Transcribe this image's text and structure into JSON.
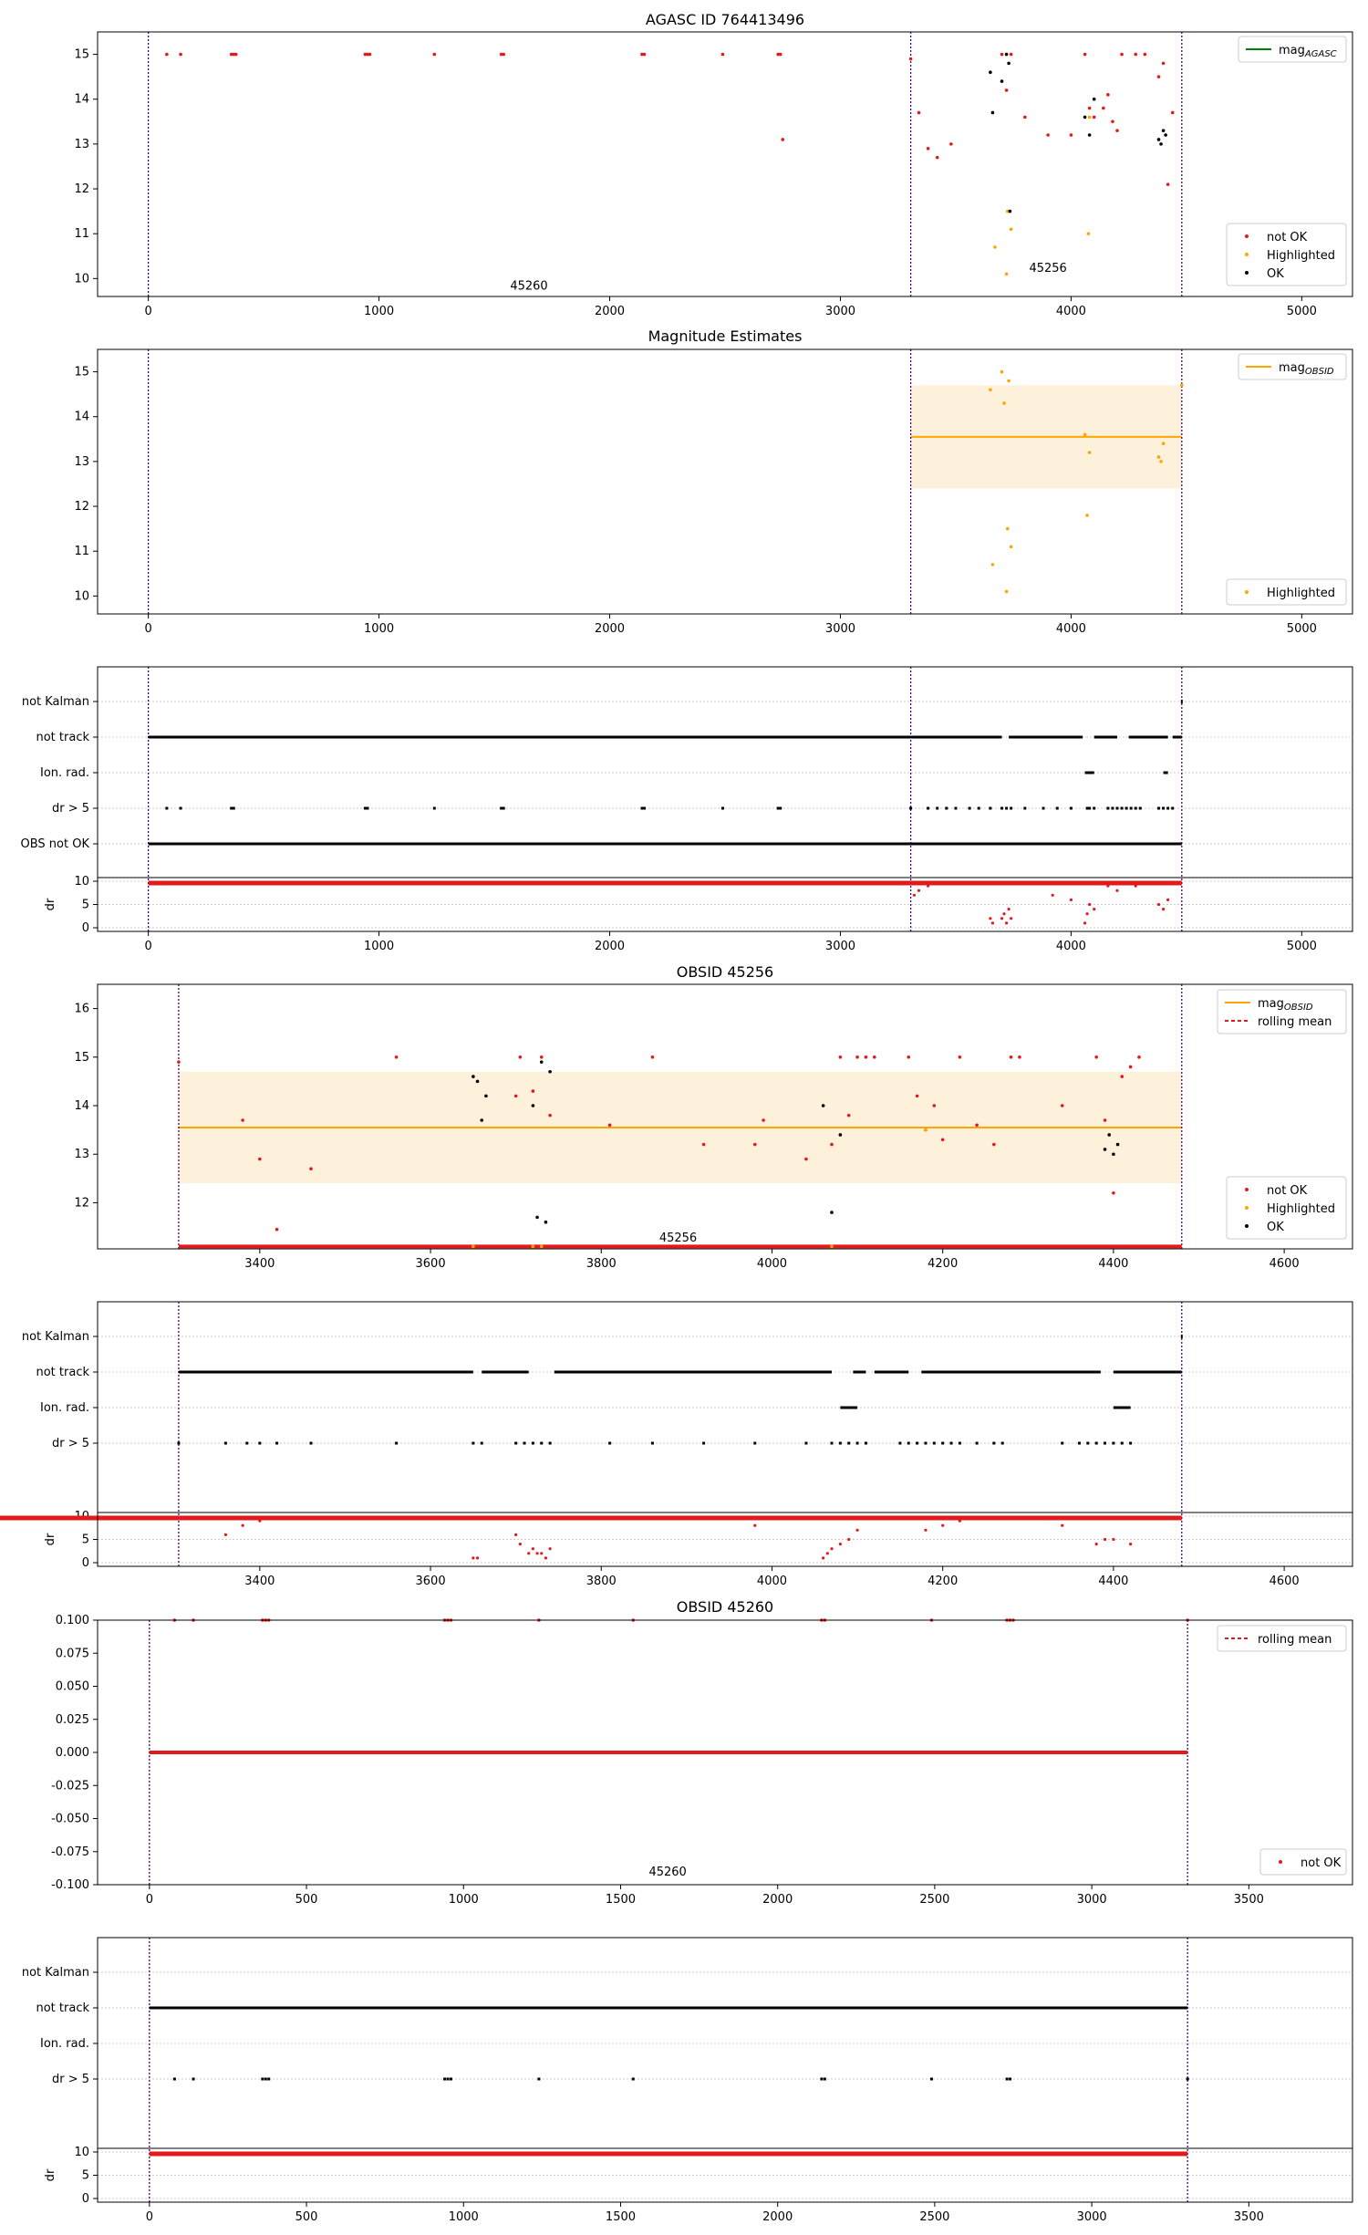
{
  "figure": {
    "panel_titles": {
      "agasc": "AGASC ID 764413496",
      "estimates": "Magnitude Estimates",
      "obs45256": "OBSID 45256",
      "obs45260": "OBSID 45260"
    }
  },
  "colors": {
    "not_ok": "#e31a1c",
    "highlighted": "#ffa500",
    "ok": "#000000",
    "agasc_line": "#008000",
    "obsid_line": "#ffa500",
    "band": "#fdf1dc",
    "rolling_mean": "#e31a1c",
    "boundary": "#4b0082"
  },
  "legends": {
    "mag_agasc": "mag",
    "mag_agasc_sub": "AGASC",
    "mag_obsid": "mag",
    "mag_obsid_sub": "OBSID",
    "rolling_mean": "rolling mean",
    "not_ok": "not OK",
    "highlighted": "Highlighted",
    "ok": "OK"
  },
  "flag_labels": [
    "not Kalman",
    "not track",
    "Ion. rad.",
    "dr > 5",
    "OBS not OK"
  ],
  "dr_label": "dr",
  "obsid_annotations": {
    "first": "45260",
    "second": "45256"
  },
  "chart_data": [
    {
      "id": "agasc",
      "type": "scatter",
      "title": "AGASC ID 764413496",
      "xlim": [
        -220,
        5220
      ],
      "ylim": [
        9.6,
        15.5
      ],
      "xticks": [
        0,
        1000,
        2000,
        3000,
        4000,
        5000
      ],
      "yticks": [
        10,
        11,
        12,
        13,
        14,
        15
      ],
      "boundaries": [
        0,
        3305,
        4480
      ],
      "segment_labels": [
        {
          "text": "45260",
          "x": 1650,
          "y": 9.75
        },
        {
          "text": "45256",
          "x": 3900,
          "y": 10.15
        }
      ],
      "series": [
        {
          "name": "not OK",
          "x": [
            80,
            140,
            360,
            370,
            380,
            940,
            950,
            960,
            1240,
            1530,
            1540,
            2140,
            2150,
            2490,
            2730,
            2740,
            2750,
            3305,
            3340,
            3380,
            3420,
            3480,
            3700,
            3720,
            3740,
            3800,
            3900,
            4000,
            4060,
            4080,
            4100,
            4140,
            4160,
            4180,
            4200,
            4220,
            4280,
            4320,
            4380,
            4400,
            4420,
            4440
          ],
          "y": [
            15,
            15,
            15,
            15,
            15,
            15,
            15,
            15,
            15,
            15,
            15,
            15,
            15,
            15,
            15,
            15,
            13.1,
            14.9,
            13.7,
            12.9,
            12.7,
            13.0,
            15,
            14.2,
            15,
            13.6,
            13.2,
            13.2,
            15,
            13.8,
            13.6,
            13.8,
            14.1,
            13.5,
            13.3,
            15,
            15,
            15,
            14.5,
            14.8,
            12.1,
            13.7
          ]
        },
        {
          "name": "Highlighted",
          "x": [
            3670,
            3720,
            3725,
            3740,
            4075,
            4080
          ],
          "y": [
            10.7,
            10.1,
            11.5,
            11.1,
            11.0,
            13.6
          ]
        },
        {
          "name": "OK",
          "x": [
            3650,
            3660,
            3700,
            3720,
            3730,
            3735,
            4060,
            4080,
            4100,
            4380,
            4390,
            4400,
            4410
          ],
          "y": [
            14.6,
            13.7,
            14.4,
            15,
            14.8,
            11.5,
            13.6,
            13.2,
            14.0,
            13.1,
            13.0,
            13.3,
            13.2
          ]
        }
      ],
      "legend": [
        "mag_AGASC",
        "not OK",
        "Highlighted",
        "OK"
      ]
    },
    {
      "id": "estimates",
      "type": "scatter",
      "title": "Magnitude Estimates",
      "xlim": [
        -220,
        5220
      ],
      "ylim": [
        9.6,
        15.5
      ],
      "xticks": [
        0,
        1000,
        2000,
        3000,
        4000,
        5000
      ],
      "yticks": [
        10,
        11,
        12,
        13,
        14,
        15
      ],
      "boundaries": [
        0,
        3305,
        4480
      ],
      "mag_obsid": 13.55,
      "band": [
        12.4,
        14.7
      ],
      "band_x": [
        3305,
        4480
      ],
      "series": [
        {
          "name": "Highlighted",
          "x": [
            3650,
            3660,
            3700,
            3710,
            3720,
            3725,
            3730,
            3740,
            4060,
            4070,
            4080,
            4380,
            4390,
            4400,
            4480
          ],
          "y": [
            14.6,
            10.7,
            15,
            14.3,
            10.1,
            11.5,
            14.8,
            11.1,
            13.6,
            11.8,
            13.2,
            13.1,
            13.0,
            13.4,
            14.7
          ]
        }
      ],
      "legend": [
        "mag_OBSID",
        "Highlighted"
      ]
    },
    {
      "id": "flags_all",
      "type": "scatter",
      "xlim": [
        -220,
        5220
      ],
      "xticks": [
        0,
        1000,
        2000,
        3000,
        4000,
        5000
      ],
      "boundaries": [
        0,
        3305,
        4480
      ],
      "flags": {
        "not_track": [
          [
            0,
            3305
          ],
          [
            3305,
            3700
          ],
          [
            3730,
            4050
          ],
          [
            4100,
            4200
          ],
          [
            4250,
            4420
          ],
          [
            4440,
            4480
          ]
        ],
        "ion_rad": [
          [
            4060,
            4100
          ],
          [
            4400,
            4420
          ]
        ],
        "dr5_points": [
          80,
          140,
          360,
          370,
          940,
          950,
          1240,
          1530,
          1540,
          2140,
          2150,
          2490,
          2730,
          2740,
          3305,
          3380,
          3420,
          3460,
          3500,
          3560,
          3600,
          3650,
          3700,
          3720,
          3740,
          3800,
          3880,
          3940,
          4000,
          4070,
          4080,
          4100,
          4160,
          4180,
          4200,
          4220,
          4240,
          4260,
          4280,
          4300,
          4380,
          4400,
          4420,
          4440
        ],
        "obs_not_ok": [
          [
            0,
            4480
          ]
        ],
        "not_kalman_points": [
          4480
        ]
      },
      "dr_ylim": [
        0,
        10
      ],
      "dr_yticks": [
        0,
        5,
        10
      ],
      "dr_points": [
        [
          3320,
          7
        ],
        [
          3340,
          8
        ],
        [
          3380,
          9
        ],
        [
          3650,
          2
        ],
        [
          3660,
          1
        ],
        [
          3700,
          2
        ],
        [
          3710,
          3
        ],
        [
          3720,
          1
        ],
        [
          3730,
          4
        ],
        [
          3740,
          2
        ],
        [
          3920,
          7
        ],
        [
          4000,
          6
        ],
        [
          4060,
          1
        ],
        [
          4070,
          3
        ],
        [
          4080,
          5
        ],
        [
          4100,
          4
        ],
        [
          4160,
          9
        ],
        [
          4200,
          8
        ],
        [
          4280,
          9
        ],
        [
          4380,
          5
        ],
        [
          4400,
          4
        ],
        [
          4420,
          6
        ]
      ]
    },
    {
      "id": "obs45256",
      "type": "scatter",
      "title": "OBSID 45256",
      "xlim": [
        3210,
        4680
      ],
      "ylim": [
        11.05,
        16.5
      ],
      "xticks": [
        3400,
        3600,
        3800,
        4000,
        4200,
        4400,
        4600
      ],
      "yticks": [
        12,
        13,
        14,
        15,
        16
      ],
      "boundaries": [
        3305,
        4480
      ],
      "segment_labels": [
        {
          "text": "45256",
          "x": 3890,
          "y": 11.2
        }
      ],
      "mag_obsid": 13.55,
      "band": [
        12.4,
        14.7
      ],
      "band_x": [
        3305,
        4480
      ],
      "series": [
        {
          "name": "not OK",
          "x": [
            3305,
            3380,
            3400,
            3420,
            3460,
            3560,
            3700,
            3705,
            3720,
            3730,
            3740,
            3810,
            3860,
            3920,
            3980,
            3990,
            4040,
            4070,
            4080,
            4090,
            4100,
            4110,
            4120,
            4160,
            4170,
            4180,
            4190,
            4200,
            4220,
            4240,
            4260,
            4280,
            4290,
            4340,
            4380,
            4390,
            4400,
            4410,
            4420,
            4430
          ],
          "y": [
            14.9,
            13.7,
            12.9,
            11.45,
            12.7,
            15,
            14.2,
            15,
            14.3,
            15,
            13.8,
            13.6,
            15,
            13.2,
            13.2,
            13.7,
            12.9,
            13.2,
            15,
            13.8,
            15,
            15,
            15,
            15,
            14.2,
            13.5,
            14.0,
            13.3,
            15,
            13.6,
            13.2,
            15,
            15,
            14.0,
            15,
            13.7,
            12.2,
            14.6,
            14.8,
            15
          ]
        },
        {
          "name": "Highlighted",
          "x": [
            3650,
            3720,
            3730,
            4070,
            4180
          ],
          "y": [
            11.1,
            11.1,
            11.1,
            11.1,
            13.5
          ]
        },
        {
          "name": "OK",
          "x": [
            3650,
            3655,
            3660,
            3665,
            3720,
            3725,
            3730,
            3735,
            3740,
            4060,
            4070,
            4080,
            4390,
            4395,
            4400,
            4405
          ],
          "y": [
            14.6,
            14.5,
            13.7,
            14.2,
            14.0,
            11.7,
            14.9,
            11.6,
            14.7,
            14.0,
            11.8,
            13.4,
            13.1,
            13.4,
            13.0,
            13.2
          ]
        }
      ],
      "rolling_mean": [
        [
          3305,
          11.1
        ],
        [
          4480,
          11.1
        ]
      ],
      "legend": [
        "mag_OBSID",
        "rolling mean",
        "not OK",
        "Highlighted",
        "OK"
      ]
    },
    {
      "id": "flags_45256",
      "type": "scatter",
      "xlim": [
        3210,
        4680
      ],
      "xticks": [
        3400,
        3600,
        3800,
        4000,
        4200,
        4400,
        4600
      ],
      "boundaries": [
        3305,
        4480
      ],
      "flags": {
        "not_track": [
          [
            3305,
            3650
          ],
          [
            3660,
            3715
          ],
          [
            3745,
            4070
          ],
          [
            4095,
            4110
          ],
          [
            4120,
            4160
          ],
          [
            4175,
            4385
          ],
          [
            4400,
            4480
          ]
        ],
        "ion_rad": [
          [
            4080,
            4100
          ],
          [
            4400,
            4420
          ]
        ],
        "dr5_points": [
          3305,
          3360,
          3385,
          3400,
          3420,
          3460,
          3560,
          3650,
          3660,
          3700,
          3710,
          3720,
          3730,
          3740,
          3810,
          3860,
          3920,
          3980,
          4040,
          4070,
          4080,
          4090,
          4100,
          4110,
          4150,
          4160,
          4170,
          4180,
          4190,
          4200,
          4210,
          4220,
          4240,
          4260,
          4270,
          4340,
          4360,
          4370,
          4380,
          4390,
          4400,
          4410,
          4420
        ],
        "not_kalman_points": [
          4480
        ]
      },
      "dr_ylim": [
        0,
        10
      ],
      "dr_yticks": [
        0,
        5,
        10
      ],
      "dr_points": [
        [
          3360,
          6
        ],
        [
          3380,
          8
        ],
        [
          3400,
          9
        ],
        [
          3650,
          1
        ],
        [
          3655,
          1
        ],
        [
          3700,
          6
        ],
        [
          3705,
          4
        ],
        [
          3715,
          2
        ],
        [
          3720,
          3
        ],
        [
          3725,
          2
        ],
        [
          3730,
          2
        ],
        [
          3735,
          1
        ],
        [
          3740,
          3
        ],
        [
          3980,
          8
        ],
        [
          4060,
          1
        ],
        [
          4065,
          2
        ],
        [
          4070,
          3
        ],
        [
          4080,
          4
        ],
        [
          4090,
          5
        ],
        [
          4100,
          7
        ],
        [
          4180,
          7
        ],
        [
          4200,
          8
        ],
        [
          4220,
          9
        ],
        [
          4340,
          8
        ],
        [
          4380,
          4
        ],
        [
          4390,
          5
        ],
        [
          4400,
          5
        ],
        [
          4420,
          4
        ]
      ]
    },
    {
      "id": "obs45260",
      "type": "scatter",
      "title": "OBSID 45260",
      "xlim": [
        -165,
        3830
      ],
      "ylim": [
        -0.1,
        0.1
      ],
      "xticks": [
        0,
        500,
        1000,
        1500,
        2000,
        2500,
        3000,
        3500
      ],
      "yticks": [
        -0.1,
        -0.075,
        -0.05,
        -0.025,
        0.0,
        0.025,
        0.05,
        0.075,
        0.1
      ],
      "boundaries": [
        0,
        3305
      ],
      "segment_labels": [
        {
          "text": "45260",
          "x": 1650,
          "y": -0.093
        }
      ],
      "series": [
        {
          "name": "not OK",
          "x": [
            80,
            140,
            360,
            370,
            380,
            940,
            950,
            960,
            1240,
            1540,
            2140,
            2150,
            2490,
            2730,
            2740,
            2750,
            3305
          ],
          "y": [
            0.1,
            0.1,
            0.1,
            0.1,
            0.1,
            0.1,
            0.1,
            0.1,
            0.1,
            0.1,
            0.1,
            0.1,
            0.1,
            0.1,
            0.1,
            0.1,
            0.1
          ]
        }
      ],
      "rolling_mean": [
        [
          0,
          0
        ],
        [
          3305,
          0
        ]
      ],
      "legend": [
        "rolling mean",
        "not OK"
      ]
    },
    {
      "id": "flags_45260",
      "type": "scatter",
      "xlim": [
        -165,
        3830
      ],
      "xticks": [
        0,
        500,
        1000,
        1500,
        2000,
        2500,
        3000,
        3500
      ],
      "boundaries": [
        0,
        3305
      ],
      "flags": {
        "not_track": [
          [
            0,
            3305
          ]
        ],
        "dr5_points": [
          80,
          140,
          360,
          370,
          380,
          940,
          950,
          960,
          1240,
          1540,
          2140,
          2150,
          2490,
          2730,
          2740,
          3305
        ]
      },
      "dr_ylim": [
        0,
        10
      ],
      "dr_yticks": [
        0,
        5,
        10
      ],
      "dr_points": []
    }
  ]
}
